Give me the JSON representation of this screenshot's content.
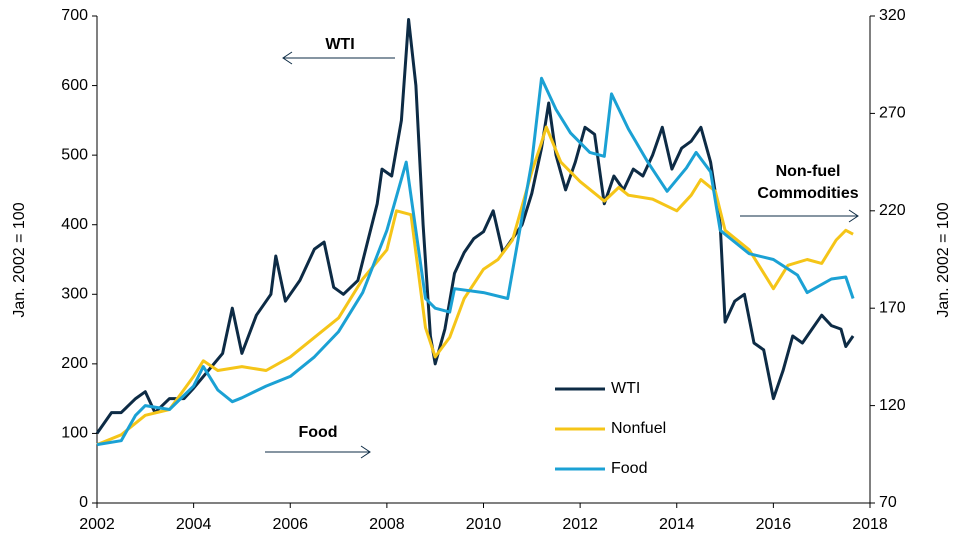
{
  "chart_data": {
    "type": "line",
    "ylabel": "Jan. 2002 = 100",
    "y2label": "Jan. 2002 = 100",
    "xlim": [
      2002,
      2018
    ],
    "xticks": [
      2002,
      2004,
      2006,
      2008,
      2010,
      2012,
      2014,
      2016,
      2018
    ],
    "ylim": [
      0,
      700
    ],
    "yticks": [
      0,
      100,
      200,
      300,
      400,
      500,
      600,
      700
    ],
    "y2lim": [
      70,
      320
    ],
    "y2ticks": [
      70,
      120,
      170,
      220,
      270,
      320
    ],
    "legend": "lower center",
    "annotations": [
      {
        "lines": [
          "WTI"
        ]
      },
      {
        "lines": [
          "Non-fuel",
          "Commodities"
        ]
      },
      {
        "lines": [
          "Food"
        ]
      }
    ],
    "series": [
      {
        "name": "WTI",
        "color": "#0d2b45",
        "axis": "y",
        "x": [
          2002.0,
          2002.3,
          2002.5,
          2002.8,
          2003.0,
          2003.2,
          2003.5,
          2003.8,
          2004.0,
          2004.3,
          2004.6,
          2004.8,
          2005.0,
          2005.3,
          2005.6,
          2005.7,
          2005.9,
          2006.2,
          2006.5,
          2006.7,
          2006.9,
          2007.1,
          2007.4,
          2007.6,
          2007.8,
          2007.9,
          2008.1,
          2008.3,
          2008.45,
          2008.6,
          2008.75,
          2008.9,
          2009.0,
          2009.2,
          2009.4,
          2009.6,
          2009.8,
          2010.0,
          2010.2,
          2010.4,
          2010.6,
          2010.8,
          2011.0,
          2011.2,
          2011.35,
          2011.5,
          2011.7,
          2011.9,
          2012.1,
          2012.3,
          2012.5,
          2012.7,
          2012.9,
          2013.1,
          2013.3,
          2013.5,
          2013.7,
          2013.9,
          2014.1,
          2014.3,
          2014.5,
          2014.7,
          2014.9,
          2015.0,
          2015.2,
          2015.4,
          2015.6,
          2015.8,
          2016.0,
          2016.2,
          2016.4,
          2016.6,
          2016.8,
          2017.0,
          2017.2,
          2017.4,
          2017.5,
          2017.65
        ],
        "values": [
          100,
          130,
          130,
          150,
          160,
          130,
          150,
          150,
          165,
          190,
          215,
          280,
          215,
          270,
          300,
          355,
          290,
          320,
          365,
          375,
          310,
          300,
          320,
          375,
          430,
          480,
          470,
          550,
          695,
          600,
          400,
          240,
          200,
          250,
          330,
          360,
          380,
          390,
          420,
          360,
          380,
          400,
          445,
          510,
          575,
          500,
          450,
          490,
          540,
          530,
          430,
          470,
          450,
          480,
          470,
          500,
          540,
          480,
          510,
          520,
          540,
          490,
          400,
          260,
          290,
          300,
          230,
          220,
          150,
          190,
          240,
          230,
          250,
          270,
          255,
          250,
          225,
          240
        ]
      },
      {
        "name": "Nonfuel",
        "color": "#f5c518",
        "axis": "y2",
        "x": [
          2002.0,
          2002.5,
          2003.0,
          2003.5,
          2004.0,
          2004.2,
          2004.5,
          2005.0,
          2005.5,
          2006.0,
          2006.5,
          2007.0,
          2007.5,
          2008.0,
          2008.2,
          2008.5,
          2008.8,
          2009.0,
          2009.3,
          2009.6,
          2010.0,
          2010.3,
          2010.6,
          2011.0,
          2011.2,
          2011.3,
          2011.6,
          2012.0,
          2012.5,
          2012.8,
          2013.0,
          2013.5,
          2014.0,
          2014.3,
          2014.5,
          2014.8,
          2015.0,
          2015.5,
          2016.0,
          2016.3,
          2016.7,
          2017.0,
          2017.3,
          2017.5,
          2017.65
        ],
        "values": [
          100,
          105,
          115,
          118,
          135,
          143,
          138,
          140,
          138,
          145,
          155,
          165,
          185,
          200,
          220,
          218,
          160,
          145,
          155,
          175,
          190,
          195,
          205,
          240,
          255,
          263,
          245,
          235,
          225,
          232,
          228,
          226,
          220,
          228,
          236,
          230,
          210,
          200,
          180,
          192,
          195,
          193,
          205,
          210,
          208
        ]
      },
      {
        "name": "Food",
        "color": "#1ba1d4",
        "axis": "y2",
        "x": [
          2002.0,
          2002.5,
          2002.8,
          2003.0,
          2003.5,
          2004.0,
          2004.2,
          2004.5,
          2004.8,
          2005.0,
          2005.5,
          2006.0,
          2006.5,
          2007.0,
          2007.5,
          2008.0,
          2008.4,
          2008.8,
          2009.0,
          2009.3,
          2009.4,
          2010.0,
          2010.5,
          2011.0,
          2011.2,
          2011.5,
          2011.8,
          2012.2,
          2012.5,
          2012.65,
          2013.0,
          2013.4,
          2013.8,
          2014.2,
          2014.4,
          2014.7,
          2014.9,
          2015.5,
          2016.0,
          2016.5,
          2016.7,
          2017.2,
          2017.5,
          2017.65
        ],
        "values": [
          100,
          102,
          115,
          120,
          118,
          130,
          140,
          128,
          122,
          124,
          130,
          135,
          145,
          158,
          178,
          210,
          245,
          175,
          170,
          168,
          180,
          178,
          175,
          245,
          288,
          272,
          260,
          250,
          248,
          280,
          262,
          245,
          230,
          242,
          250,
          240,
          210,
          198,
          195,
          187,
          178,
          185,
          186,
          175
        ]
      }
    ]
  }
}
